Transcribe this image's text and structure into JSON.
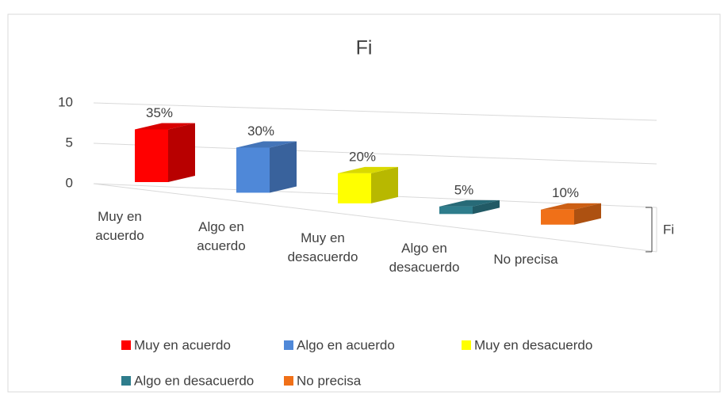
{
  "chart_data": {
    "type": "bar3d",
    "title": "Fi",
    "series_name": "Fi",
    "categories": [
      "Muy en acuerdo",
      "Algo en acuerdo",
      "Muy en desacuerdo",
      "Algo en desacuerdo",
      "No precisa"
    ],
    "values": [
      7,
      6,
      4,
      1,
      2
    ],
    "value_labels": [
      "35%",
      "30%",
      "20%",
      "5%",
      "10%"
    ],
    "colors": [
      "#ff0000",
      "#4f88d8",
      "#ffff00",
      "#2e7d8c",
      "#f07018"
    ],
    "ylim": [
      0,
      10
    ],
    "yticks": [
      0,
      5,
      10
    ],
    "grid": true
  }
}
